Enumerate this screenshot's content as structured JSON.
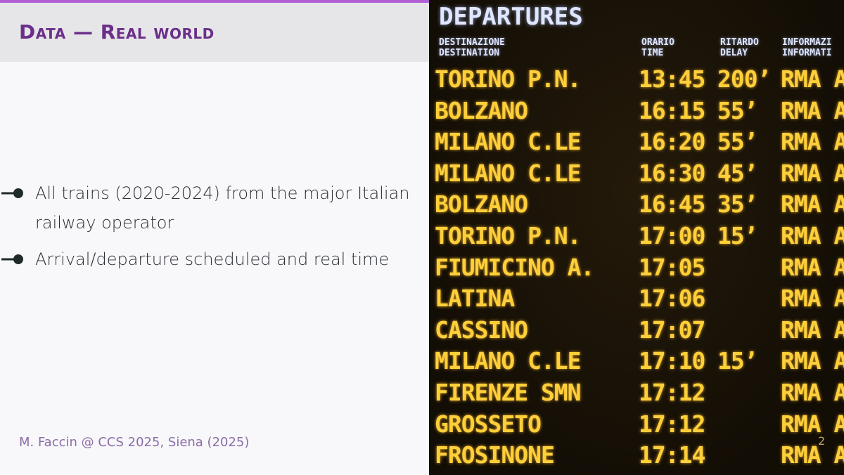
{
  "slide": {
    "title": "Data — Real world",
    "bullets": [
      "All trains (2020-2024) from the major Italian railway operator",
      "Arrival/departure scheduled and real time"
    ],
    "footer": "M. Faccin @ CCS 2025, Siena (2025)",
    "page_number": "2"
  },
  "board": {
    "title": "DEPARTURES",
    "headers": {
      "destination": "DESTINAZIONE\nDESTINATION",
      "time": "ORARIO\nTIME",
      "delay": "RITARDO\nDELAY",
      "info": "INFORMAZI\nINFORMATI"
    },
    "rows": [
      {
        "destination": "TORINO P.N.",
        "time": "13:45",
        "delay": "200’",
        "info": "RMA A"
      },
      {
        "destination": "BOLZANO",
        "time": "16:15",
        "delay": "55’",
        "info": "RMA A"
      },
      {
        "destination": "MILANO C.LE",
        "time": "16:20",
        "delay": "55’",
        "info": "RMA A"
      },
      {
        "destination": "MILANO C.LE",
        "time": "16:30",
        "delay": "45’",
        "info": "RMA A"
      },
      {
        "destination": "BOLZANO",
        "time": "16:45",
        "delay": "35’",
        "info": "RMA A"
      },
      {
        "destination": "TORINO P.N.",
        "time": "17:00",
        "delay": "15’",
        "info": "RMA A"
      },
      {
        "destination": "FIUMICINO A.",
        "time": "17:05",
        "delay": "",
        "info": "RMA A"
      },
      {
        "destination": "LATINA",
        "time": "17:06",
        "delay": "",
        "info": "RMA A"
      },
      {
        "destination": "CASSINO",
        "time": "17:07",
        "delay": "",
        "info": "RMA A"
      },
      {
        "destination": "MILANO C.LE",
        "time": "17:10",
        "delay": "15’",
        "info": "RMA A"
      },
      {
        "destination": "FIRENZE SMN",
        "time": "17:12",
        "delay": "",
        "info": "RMA A"
      },
      {
        "destination": "GROSSETO",
        "time": "17:12",
        "delay": "",
        "info": "RMA A"
      },
      {
        "destination": "FROSINONE",
        "time": "17:14",
        "delay": "",
        "info": "RMA A"
      }
    ]
  },
  "colors": {
    "accent": "#b25fd6",
    "title": "#6b2f8a",
    "board_text": "#ffcf3a",
    "board_header": "#dfe6ff"
  }
}
